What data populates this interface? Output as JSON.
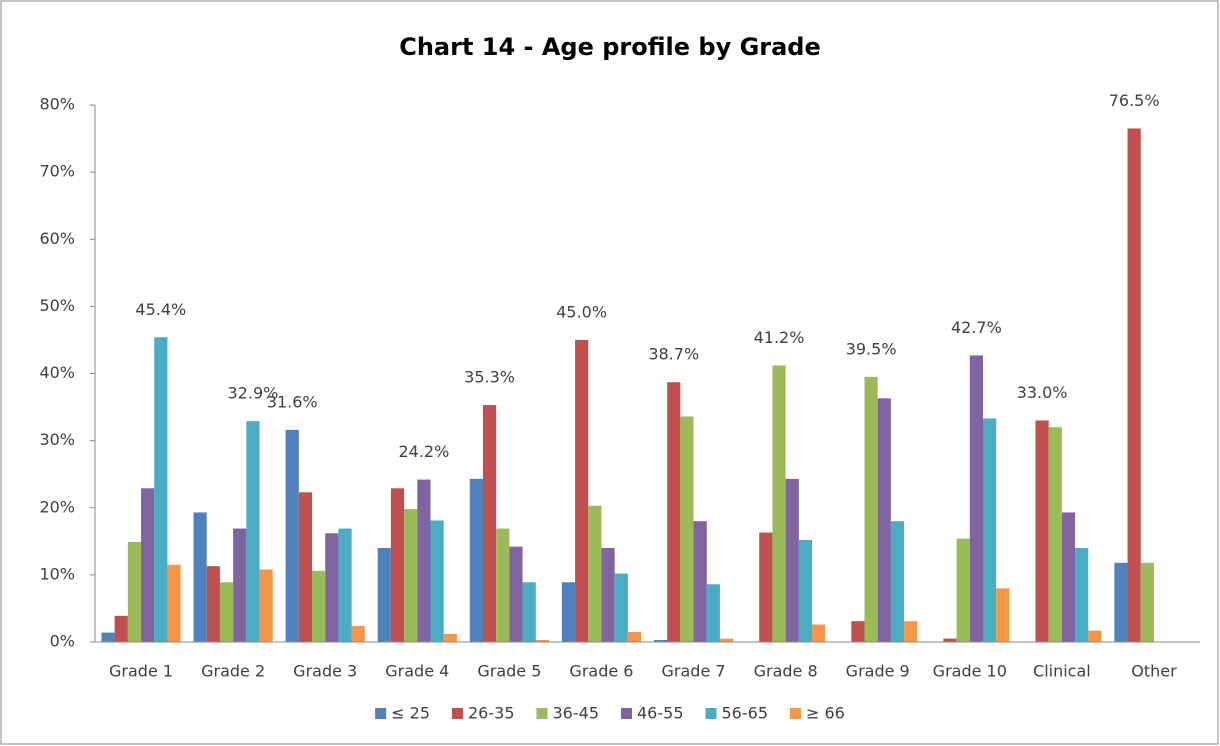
{
  "chart_data": {
    "type": "bar",
    "title": "Chart 14 - Age profile by Grade",
    "categories": [
      "Grade 1",
      "Grade 2",
      "Grade 3",
      "Grade 4",
      "Grade 5",
      "Grade 6",
      "Grade 7",
      "Grade 8",
      "Grade 9",
      "Grade 10",
      "Clinical",
      "Other"
    ],
    "series": [
      {
        "name": "≤ 25",
        "color": "#4f81bd",
        "values": [
          1.4,
          19.3,
          31.6,
          14.0,
          24.3,
          8.9,
          0.3,
          0,
          0,
          0,
          0,
          11.8
        ],
        "value_labels": [
          null,
          null,
          "31.6%",
          null,
          null,
          null,
          null,
          null,
          null,
          null,
          null,
          null
        ]
      },
      {
        "name": "26-35",
        "color": "#c0504d",
        "values": [
          3.9,
          11.3,
          22.3,
          22.9,
          35.3,
          45.0,
          38.7,
          16.3,
          3.1,
          0.5,
          33.0,
          76.5
        ],
        "value_labels": [
          null,
          null,
          null,
          null,
          "35.3%",
          "45.0%",
          "38.7%",
          null,
          null,
          null,
          "33.0%",
          "76.5%"
        ]
      },
      {
        "name": "36-45",
        "color": "#9bbb59",
        "values": [
          14.9,
          8.9,
          10.6,
          19.8,
          16.9,
          20.3,
          33.6,
          41.2,
          39.5,
          15.4,
          32.0,
          11.8
        ],
        "value_labels": [
          null,
          null,
          null,
          null,
          null,
          null,
          null,
          "41.2%",
          "39.5%",
          null,
          null,
          null
        ]
      },
      {
        "name": "46-55",
        "color": "#8064a2",
        "values": [
          22.9,
          16.9,
          16.2,
          24.2,
          14.2,
          14.0,
          18.0,
          24.3,
          36.3,
          42.7,
          19.3,
          0
        ],
        "value_labels": [
          null,
          null,
          null,
          "24.2%",
          null,
          null,
          null,
          null,
          null,
          "42.7%",
          null,
          null
        ]
      },
      {
        "name": "56-65",
        "color": "#4bacc6",
        "values": [
          45.4,
          32.9,
          16.9,
          18.1,
          8.9,
          10.2,
          8.6,
          15.2,
          18.0,
          33.3,
          14.0,
          0
        ],
        "value_labels": [
          "45.4%",
          "32.9%",
          null,
          null,
          null,
          null,
          null,
          null,
          null,
          null,
          null,
          null
        ]
      },
      {
        "name": "≥ 66",
        "color": "#f79646",
        "values": [
          11.5,
          10.8,
          2.4,
          1.2,
          0.3,
          1.5,
          0.5,
          2.6,
          3.1,
          8.0,
          1.7,
          0
        ],
        "value_labels": [
          null,
          null,
          null,
          null,
          null,
          null,
          null,
          null,
          null,
          null,
          null,
          null
        ]
      }
    ],
    "ylim": [
      0,
      80
    ],
    "yticks": [
      {
        "value": 0,
        "label": "0%"
      },
      {
        "value": 10,
        "label": "10%"
      },
      {
        "value": 20,
        "label": "20%"
      },
      {
        "value": 30,
        "label": "30%"
      },
      {
        "value": 40,
        "label": "40%"
      },
      {
        "value": 50,
        "label": "50%"
      },
      {
        "value": 60,
        "label": "60%"
      },
      {
        "value": 70,
        "label": "70%"
      },
      {
        "value": 80,
        "label": "80%"
      }
    ],
    "grid": false,
    "legend": "bottom"
  }
}
